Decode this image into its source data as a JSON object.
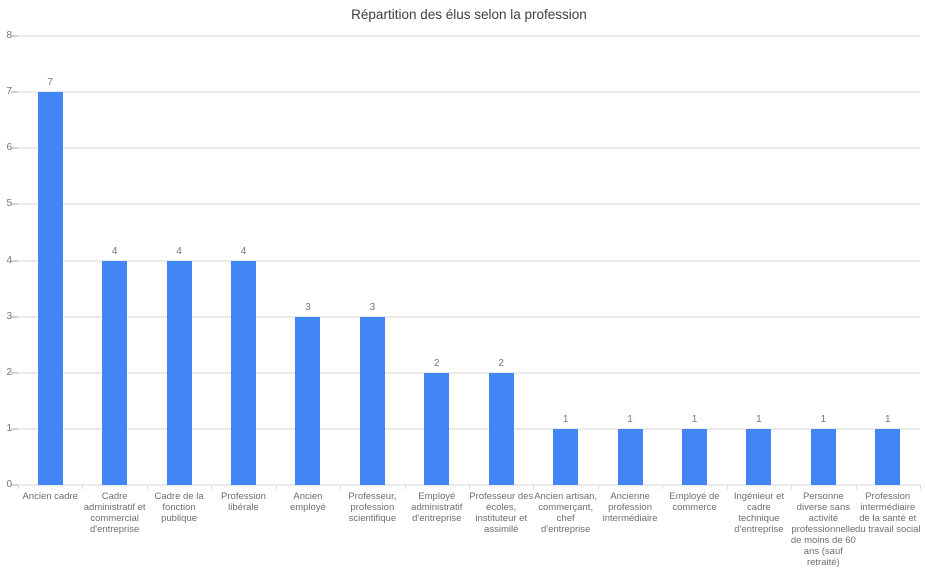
{
  "chart_data": {
    "type": "bar",
    "title": "Répartition des élus selon la profession",
    "xlabel": "",
    "ylabel": "",
    "ylim": [
      0,
      8
    ],
    "yticks": [
      0,
      1,
      2,
      3,
      4,
      5,
      6,
      7,
      8
    ],
    "grid": true,
    "legend": "none",
    "bar_color": "#4285f4",
    "value_labels_shown": true,
    "categories": [
      "Ancien cadre",
      "Cadre administratif et commercial d'entreprise",
      "Cadre de la fonction publique",
      "Profession libérale",
      "Ancien employé",
      "Professeur, profession scientifique",
      "Employé administratif d'entreprise",
      "Professeur des écoles, instituteur et assimilé",
      "Ancien artisan, commerçant, chef d'entreprise",
      "Ancienne profession intermédiaire",
      "Employé de commerce",
      "Ingénieur et cadre technique d'entreprise",
      "Personne diverse sans activité professionnelle de moins de 60 ans (sauf retraité)",
      "Profession intermédiaire de la santé et du travail social"
    ],
    "values": [
      7,
      4,
      4,
      4,
      3,
      3,
      2,
      2,
      1,
      1,
      1,
      1,
      1,
      1
    ],
    "category_label_lines": [
      [
        "Ancien cadre"
      ],
      [
        "Cadre",
        "administratif et",
        "commercial",
        "d'entreprise"
      ],
      [
        "Cadre de la",
        "fonction",
        "publique"
      ],
      [
        "Profession",
        "libérale"
      ],
      [
        "Ancien",
        "employé"
      ],
      [
        "Professeur,",
        "profession",
        "scientifique"
      ],
      [
        "Employé",
        "administratif",
        "d'entreprise"
      ],
      [
        "Professeur des",
        "écoles,",
        "instituteur et",
        "assimilé"
      ],
      [
        "Ancien artisan,",
        "commerçant,",
        "chef",
        "d'entreprise"
      ],
      [
        "Ancienne",
        "profession",
        "intermédiaire"
      ],
      [
        "Employé de",
        "commerce"
      ],
      [
        "Ingénieur et",
        "cadre",
        "technique",
        "d'entreprise"
      ],
      [
        "Personne",
        "diverse sans",
        "activité",
        "professionnelle",
        "de moins de 60",
        "ans (sauf",
        "retraité)"
      ],
      [
        "Profession",
        "intermédiaire",
        "de la santé et",
        "du travail social"
      ]
    ]
  },
  "style": {
    "background": "#ffffff",
    "grid_color": "#ebebeb",
    "tick_color": "#d2d2d2",
    "title_color": "#3f3f3f",
    "axis_label_color": "#757575",
    "category_label_color": "#6e6e6e"
  }
}
